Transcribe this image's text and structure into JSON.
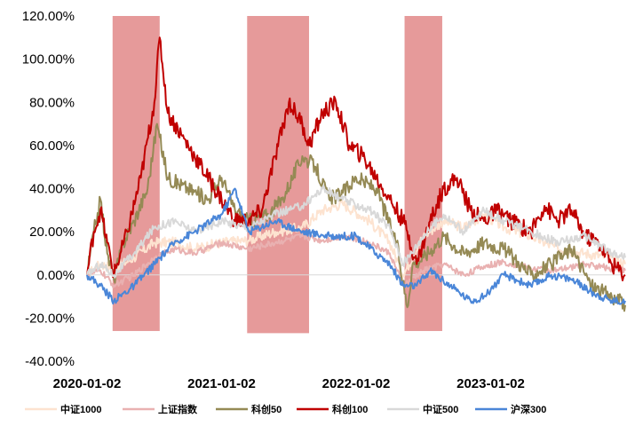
{
  "chart_data": {
    "type": "line",
    "title": "",
    "xlabel": "",
    "ylabel": "",
    "ylim": [
      -0.4,
      1.2
    ],
    "yticks": [
      "120.00%",
      "100.00%",
      "80.00%",
      "60.00%",
      "40.00%",
      "20.00%",
      "0.00%",
      "-20.00%",
      "-40.00%"
    ],
    "ytick_values": [
      1.2,
      1.0,
      0.8,
      0.6,
      0.4,
      0.2,
      0.0,
      -0.2,
      -0.4
    ],
    "x_range": [
      2020.0,
      2024.0
    ],
    "xticks": [
      "2020-01-02",
      "2021-01-02",
      "2022-01-02",
      "2023-01-02"
    ],
    "xtick_values": [
      2020.0,
      2021.0,
      2022.0,
      2023.0
    ],
    "shaded_periods": [
      {
        "start": 2020.19,
        "end": 2020.54,
        "ymin": -0.26,
        "ymax": 1.2
      },
      {
        "start": 2021.19,
        "end": 2021.65,
        "ymin": -0.27,
        "ymax": 1.2
      },
      {
        "start": 2022.36,
        "end": 2022.64,
        "ymin": -0.26,
        "ymax": 1.2
      }
    ],
    "shade_color": "#e69a9a",
    "legend_position": "bottom",
    "series": [
      {
        "name": "中证1000",
        "color": "#fde3d0",
        "x": [
          2020.0,
          2020.1,
          2020.2,
          2020.35,
          2020.5,
          2020.65,
          2020.8,
          2021.0,
          2021.2,
          2021.4,
          2021.6,
          2021.75,
          2021.9,
          2022.1,
          2022.25,
          2022.35,
          2022.5,
          2022.65,
          2022.8,
          2022.95,
          2023.1,
          2023.3,
          2023.5,
          2023.7,
          2023.9,
          2024.0
        ],
        "values": [
          0.0,
          0.05,
          0.03,
          0.08,
          0.15,
          0.15,
          0.12,
          0.15,
          0.16,
          0.2,
          0.22,
          0.3,
          0.33,
          0.25,
          0.15,
          0.0,
          0.18,
          0.25,
          0.22,
          0.28,
          0.22,
          0.18,
          0.12,
          0.1,
          0.08,
          0.05
        ]
      },
      {
        "name": "上证指数",
        "color": "#e9b1b1",
        "x": [
          2020.0,
          2020.1,
          2020.2,
          2020.35,
          2020.5,
          2020.65,
          2020.8,
          2021.0,
          2021.2,
          2021.4,
          2021.6,
          2021.75,
          2021.9,
          2022.1,
          2022.25,
          2022.35,
          2022.5,
          2022.65,
          2022.8,
          2022.95,
          2023.1,
          2023.3,
          2023.5,
          2023.7,
          2023.9,
          2024.0
        ],
        "values": [
          0.0,
          0.02,
          -0.05,
          0.0,
          0.08,
          0.12,
          0.1,
          0.15,
          0.12,
          0.15,
          0.18,
          0.16,
          0.18,
          0.15,
          0.1,
          -0.05,
          0.02,
          0.05,
          0.0,
          0.04,
          0.06,
          0.03,
          0.02,
          0.05,
          0.03,
          0.02
        ]
      },
      {
        "name": "科创50",
        "color": "#958a55",
        "x": [
          2020.0,
          2020.05,
          2020.1,
          2020.15,
          2020.2,
          2020.27,
          2020.35,
          2020.45,
          2020.52,
          2020.6,
          2020.75,
          2020.9,
          2021.0,
          2021.1,
          2021.2,
          2021.35,
          2021.45,
          2021.6,
          2021.7,
          2021.8,
          2021.9,
          2022.0,
          2022.15,
          2022.3,
          2022.38,
          2022.42,
          2022.5,
          2022.65,
          2022.8,
          2022.95,
          2023.1,
          2023.3,
          2023.45,
          2023.6,
          2023.75,
          2023.9,
          2024.0
        ],
        "values": [
          0.0,
          0.2,
          0.35,
          0.1,
          -0.02,
          0.15,
          0.25,
          0.4,
          0.7,
          0.45,
          0.4,
          0.35,
          0.45,
          0.3,
          0.25,
          0.28,
          0.35,
          0.55,
          0.5,
          0.35,
          0.38,
          0.45,
          0.4,
          0.15,
          -0.15,
          0.05,
          0.08,
          0.18,
          0.1,
          0.15,
          0.12,
          0.0,
          0.05,
          0.12,
          -0.05,
          -0.1,
          -0.14
        ]
      },
      {
        "name": "科创100",
        "color": "#c00000",
        "x": [
          2020.0,
          2020.05,
          2020.1,
          2020.15,
          2020.2,
          2020.3,
          2020.4,
          2020.5,
          2020.54,
          2020.6,
          2020.7,
          2020.8,
          2021.0,
          2021.1,
          2021.2,
          2021.3,
          2021.4,
          2021.5,
          2021.6,
          2021.65,
          2021.75,
          2021.85,
          2021.95,
          2022.05,
          2022.15,
          2022.25,
          2022.35,
          2022.38,
          2022.45,
          2022.55,
          2022.65,
          2022.75,
          2022.85,
          2022.95,
          2023.05,
          2023.15,
          2023.3,
          2023.4,
          2023.5,
          2023.6,
          2023.7,
          2023.8,
          2023.9,
          2024.0
        ],
        "values": [
          0.0,
          0.2,
          0.3,
          0.15,
          0.0,
          0.2,
          0.45,
          0.8,
          1.1,
          0.75,
          0.65,
          0.55,
          0.35,
          0.25,
          0.25,
          0.3,
          0.55,
          0.8,
          0.7,
          0.6,
          0.75,
          0.8,
          0.6,
          0.55,
          0.45,
          0.35,
          0.25,
          0.2,
          0.05,
          0.25,
          0.4,
          0.45,
          0.3,
          0.25,
          0.3,
          0.25,
          0.2,
          0.32,
          0.25,
          0.3,
          0.18,
          0.15,
          0.05,
          0.0
        ]
      },
      {
        "name": "中证500",
        "color": "#d9d9d9",
        "x": [
          2020.0,
          2020.1,
          2020.2,
          2020.35,
          2020.5,
          2020.65,
          2020.8,
          2021.0,
          2021.2,
          2021.4,
          2021.6,
          2021.75,
          2021.9,
          2022.1,
          2022.25,
          2022.35,
          2022.5,
          2022.65,
          2022.8,
          2022.95,
          2023.1,
          2023.3,
          2023.5,
          2023.7,
          2023.9,
          2024.0
        ],
        "values": [
          0.0,
          0.05,
          0.0,
          0.1,
          0.22,
          0.25,
          0.2,
          0.25,
          0.22,
          0.28,
          0.32,
          0.4,
          0.35,
          0.3,
          0.22,
          0.05,
          0.18,
          0.28,
          0.2,
          0.3,
          0.25,
          0.2,
          0.15,
          0.18,
          0.1,
          0.08
        ]
      },
      {
        "name": "沪深300",
        "color": "#4a86d8",
        "x": [
          2020.0,
          2020.1,
          2020.2,
          2020.35,
          2020.5,
          2020.65,
          2020.8,
          2021.0,
          2021.1,
          2021.2,
          2021.4,
          2021.6,
          2021.8,
          2022.0,
          2022.15,
          2022.25,
          2022.35,
          2022.45,
          2022.55,
          2022.7,
          2022.85,
          2022.95,
          2023.1,
          2023.3,
          2023.45,
          2023.6,
          2023.75,
          2023.9,
          2024.0
        ],
        "values": [
          0.0,
          -0.05,
          -0.12,
          -0.05,
          0.05,
          0.15,
          0.2,
          0.28,
          0.4,
          0.2,
          0.25,
          0.2,
          0.18,
          0.18,
          0.1,
          0.05,
          -0.05,
          -0.05,
          0.02,
          -0.05,
          -0.12,
          -0.1,
          0.0,
          -0.05,
          0.0,
          -0.02,
          -0.08,
          -0.12,
          -0.12
        ]
      }
    ]
  }
}
